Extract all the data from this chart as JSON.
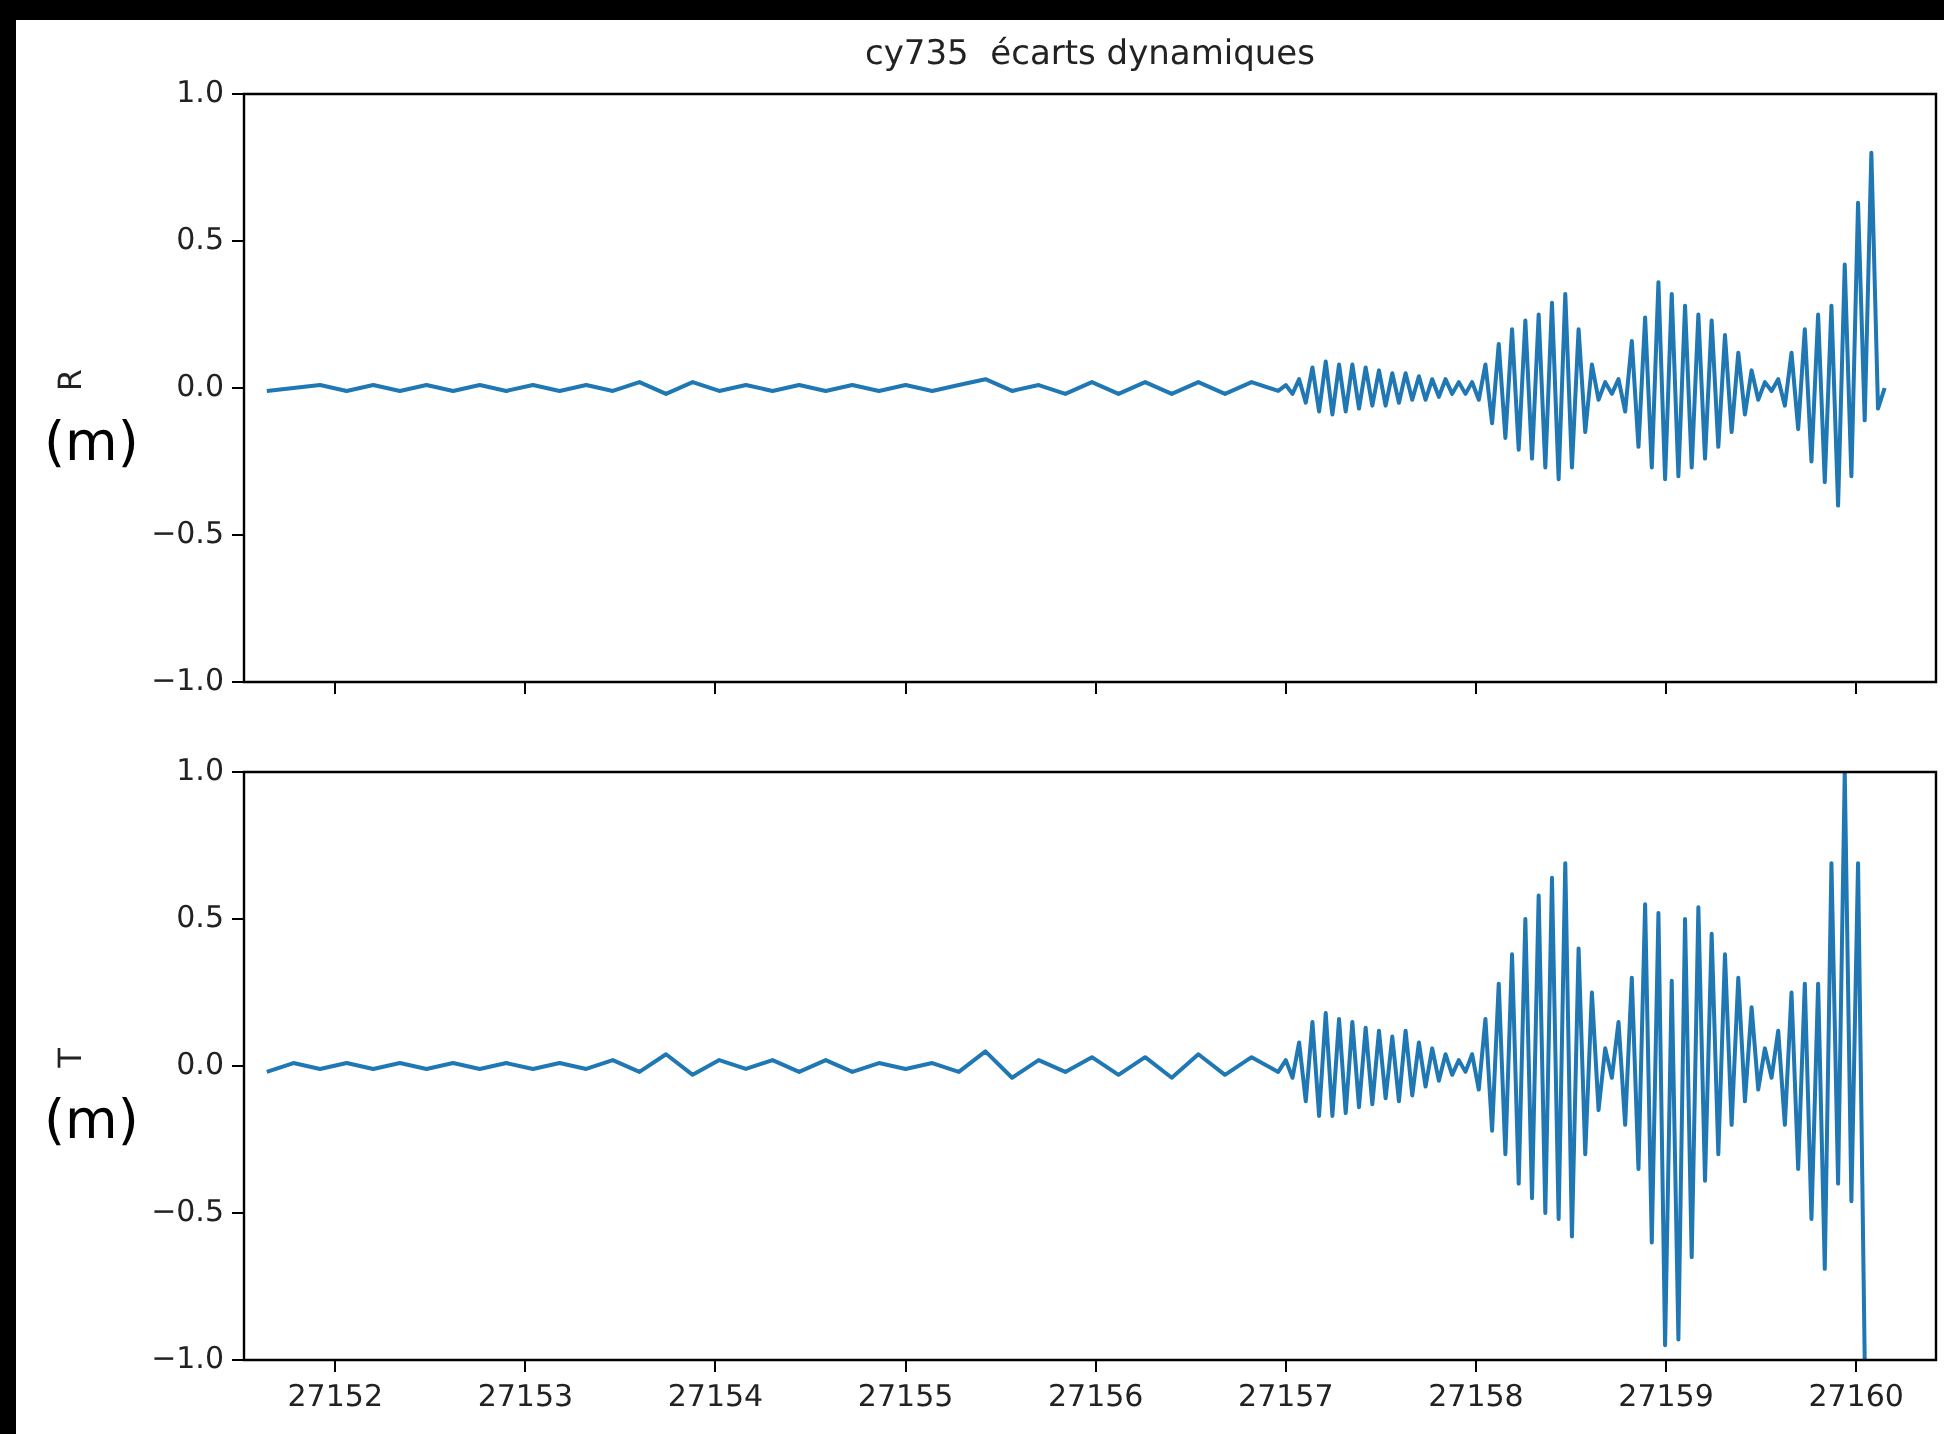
{
  "chart_data": [
    {
      "type": "line",
      "title": "cy735  écarts dynamiques",
      "ylabel": "R",
      "annotations": [
        "(m)"
      ],
      "tick_labels": "y",
      "xlim": [
        27151.52,
        27160.42
      ],
      "xticks": [
        27152,
        27153,
        27154,
        27155,
        27156,
        27157,
        27158,
        27159,
        27160
      ],
      "ylim": [
        -1,
        1
      ],
      "yticks": [
        {
          "value": -1,
          "label": "−1.0"
        },
        {
          "value": -0.5,
          "label": "−0.5"
        },
        {
          "value": 0,
          "label": "0.0"
        },
        {
          "value": 0.5,
          "label": "0.5"
        },
        {
          "value": 1,
          "label": "1.0"
        }
      ],
      "x": [
        27151.64,
        27151.78,
        27151.92,
        27152.06,
        27152.2,
        27152.34,
        27152.48,
        27152.62,
        27152.76,
        27152.9,
        27153.04,
        27153.18,
        27153.32,
        27153.46,
        27153.6,
        27153.74,
        27153.88,
        27154.02,
        27154.16,
        27154.3,
        27154.44,
        27154.58,
        27154.72,
        27154.86,
        27155.0,
        27155.14,
        27155.28,
        27155.42,
        27155.56,
        27155.7,
        27155.84,
        27155.98,
        27156.12,
        27156.26,
        27156.4,
        27156.54,
        27156.68,
        27156.82,
        27156.96,
        27157.0,
        27157.035,
        27157.07,
        27157.105,
        27157.14,
        27157.175,
        27157.21,
        27157.245,
        27157.28,
        27157.315,
        27157.35,
        27157.385,
        27157.42,
        27157.455,
        27157.49,
        27157.525,
        27157.56,
        27157.595,
        27157.63,
        27157.665,
        27157.7,
        27157.735,
        27157.77,
        27157.805,
        27157.84,
        27157.875,
        27157.91,
        27157.945,
        27157.98,
        27158.015,
        27158.05,
        27158.085,
        27158.12,
        27158.155,
        27158.19,
        27158.225,
        27158.26,
        27158.295,
        27158.33,
        27158.365,
        27158.4,
        27158.435,
        27158.47,
        27158.505,
        27158.54,
        27158.575,
        27158.61,
        27158.645,
        27158.68,
        27158.715,
        27158.75,
        27158.785,
        27158.82,
        27158.855,
        27158.89,
        27158.925,
        27158.96,
        27158.995,
        27159.03,
        27159.065,
        27159.1,
        27159.135,
        27159.17,
        27159.205,
        27159.24,
        27159.275,
        27159.31,
        27159.345,
        27159.38,
        27159.415,
        27159.45,
        27159.485,
        27159.52,
        27159.555,
        27159.59,
        27159.625,
        27159.66,
        27159.695,
        27159.73,
        27159.765,
        27159.8,
        27159.835,
        27159.87,
        27159.905,
        27159.94,
        27159.975,
        27160.01,
        27160.045,
        27160.08,
        27160.115,
        27160.15
      ],
      "series": [
        {
          "color": "#1f77b4",
          "values": [
            -0.01,
            0.0,
            0.01,
            -0.01,
            0.01,
            -0.01,
            0.01,
            -0.01,
            0.01,
            -0.01,
            0.01,
            -0.01,
            0.01,
            -0.01,
            0.02,
            -0.02,
            0.02,
            -0.01,
            0.01,
            -0.01,
            0.01,
            -0.01,
            0.01,
            -0.01,
            0.01,
            -0.01,
            0.01,
            0.03,
            -0.01,
            0.01,
            -0.02,
            0.02,
            -0.02,
            0.02,
            -0.02,
            0.02,
            -0.02,
            0.02,
            -0.01,
            0.01,
            -0.02,
            0.03,
            -0.05,
            0.07,
            -0.08,
            0.09,
            -0.09,
            0.08,
            -0.08,
            0.08,
            -0.07,
            0.07,
            -0.06,
            0.06,
            -0.06,
            0.05,
            -0.05,
            0.05,
            -0.04,
            0.04,
            -0.04,
            0.03,
            -0.03,
            0.03,
            -0.02,
            0.02,
            -0.02,
            0.02,
            -0.04,
            0.08,
            -0.12,
            0.15,
            -0.17,
            0.2,
            -0.21,
            0.23,
            -0.24,
            0.25,
            -0.27,
            0.29,
            -0.31,
            0.32,
            -0.27,
            0.2,
            -0.15,
            0.08,
            -0.04,
            0.02,
            -0.02,
            0.03,
            -0.08,
            0.16,
            -0.2,
            0.24,
            -0.27,
            0.36,
            -0.31,
            0.32,
            -0.3,
            0.28,
            -0.27,
            0.25,
            -0.24,
            0.23,
            -0.2,
            0.18,
            -0.15,
            0.12,
            -0.09,
            0.06,
            -0.04,
            0.02,
            -0.01,
            0.03,
            -0.06,
            0.12,
            -0.14,
            0.2,
            -0.25,
            0.25,
            -0.32,
            0.28,
            -0.4,
            0.42,
            -0.3,
            0.63,
            -0.11,
            0.8,
            -0.07,
            0.0
          ]
        }
      ]
    },
    {
      "type": "line",
      "ylabel": "T",
      "annotations": [
        "(m)"
      ],
      "xlim": [
        27151.52,
        27160.42
      ],
      "xticks": [
        27152,
        27153,
        27154,
        27155,
        27156,
        27157,
        27158,
        27159,
        27160
      ],
      "ylim": [
        -1,
        1
      ],
      "yticks": [
        {
          "value": -1,
          "label": "−1.0"
        },
        {
          "value": -0.5,
          "label": "−0.5"
        },
        {
          "value": 0,
          "label": "0.0"
        },
        {
          "value": 0.5,
          "label": "0.5"
        },
        {
          "value": 1,
          "label": "1.0"
        }
      ],
      "x": [
        27151.64,
        27151.78,
        27151.92,
        27152.06,
        27152.2,
        27152.34,
        27152.48,
        27152.62,
        27152.76,
        27152.9,
        27153.04,
        27153.18,
        27153.32,
        27153.46,
        27153.6,
        27153.74,
        27153.88,
        27154.02,
        27154.16,
        27154.3,
        27154.44,
        27154.58,
        27154.72,
        27154.86,
        27155.0,
        27155.14,
        27155.28,
        27155.42,
        27155.56,
        27155.7,
        27155.84,
        27155.98,
        27156.12,
        27156.26,
        27156.4,
        27156.54,
        27156.68,
        27156.82,
        27156.96,
        27157.0,
        27157.035,
        27157.07,
        27157.105,
        27157.14,
        27157.175,
        27157.21,
        27157.245,
        27157.28,
        27157.315,
        27157.35,
        27157.385,
        27157.42,
        27157.455,
        27157.49,
        27157.525,
        27157.56,
        27157.595,
        27157.63,
        27157.665,
        27157.7,
        27157.735,
        27157.77,
        27157.805,
        27157.84,
        27157.875,
        27157.91,
        27157.945,
        27157.98,
        27158.015,
        27158.05,
        27158.085,
        27158.12,
        27158.155,
        27158.19,
        27158.225,
        27158.26,
        27158.295,
        27158.33,
        27158.365,
        27158.4,
        27158.435,
        27158.47,
        27158.505,
        27158.54,
        27158.575,
        27158.61,
        27158.645,
        27158.68,
        27158.715,
        27158.75,
        27158.785,
        27158.82,
        27158.855,
        27158.89,
        27158.925,
        27158.96,
        27158.995,
        27159.03,
        27159.065,
        27159.1,
        27159.135,
        27159.17,
        27159.205,
        27159.24,
        27159.275,
        27159.31,
        27159.345,
        27159.38,
        27159.415,
        27159.45,
        27159.485,
        27159.52,
        27159.555,
        27159.59,
        27159.625,
        27159.66,
        27159.695,
        27159.73,
        27159.765,
        27159.8,
        27159.835,
        27159.87,
        27159.905,
        27159.94,
        27159.975,
        27160.01,
        27160.045
      ],
      "series": [
        {
          "color": "#1f77b4",
          "values": [
            -0.02,
            0.01,
            -0.01,
            0.01,
            -0.01,
            0.01,
            -0.01,
            0.01,
            -0.01,
            0.01,
            -0.01,
            0.01,
            -0.01,
            0.02,
            -0.02,
            0.04,
            -0.03,
            0.02,
            -0.01,
            0.02,
            -0.02,
            0.02,
            -0.02,
            0.01,
            -0.01,
            0.01,
            -0.02,
            0.05,
            -0.04,
            0.02,
            -0.02,
            0.03,
            -0.03,
            0.03,
            -0.04,
            0.04,
            -0.03,
            0.03,
            -0.02,
            0.02,
            -0.04,
            0.08,
            -0.12,
            0.15,
            -0.17,
            0.18,
            -0.17,
            0.16,
            -0.16,
            0.15,
            -0.14,
            0.13,
            -0.13,
            0.12,
            -0.11,
            0.1,
            -0.12,
            0.12,
            -0.1,
            0.08,
            -0.07,
            0.06,
            -0.05,
            0.04,
            -0.03,
            0.02,
            -0.02,
            0.04,
            -0.08,
            0.16,
            -0.22,
            0.28,
            -0.3,
            0.38,
            -0.4,
            0.5,
            -0.45,
            0.58,
            -0.5,
            0.64,
            -0.52,
            0.69,
            -0.58,
            0.4,
            -0.3,
            0.25,
            -0.15,
            0.06,
            -0.04,
            0.15,
            -0.2,
            0.3,
            -0.35,
            0.55,
            -0.6,
            0.52,
            -0.95,
            0.29,
            -0.93,
            0.5,
            -0.65,
            0.54,
            -0.39,
            0.45,
            -0.3,
            0.38,
            -0.2,
            0.3,
            -0.12,
            0.2,
            -0.08,
            0.06,
            -0.04,
            0.12,
            -0.2,
            0.25,
            -0.35,
            0.28,
            -0.52,
            0.28,
            -0.69,
            0.69,
            -0.4,
            1.0,
            -0.46,
            0.69,
            -1.0
          ]
        }
      ]
    }
  ]
}
